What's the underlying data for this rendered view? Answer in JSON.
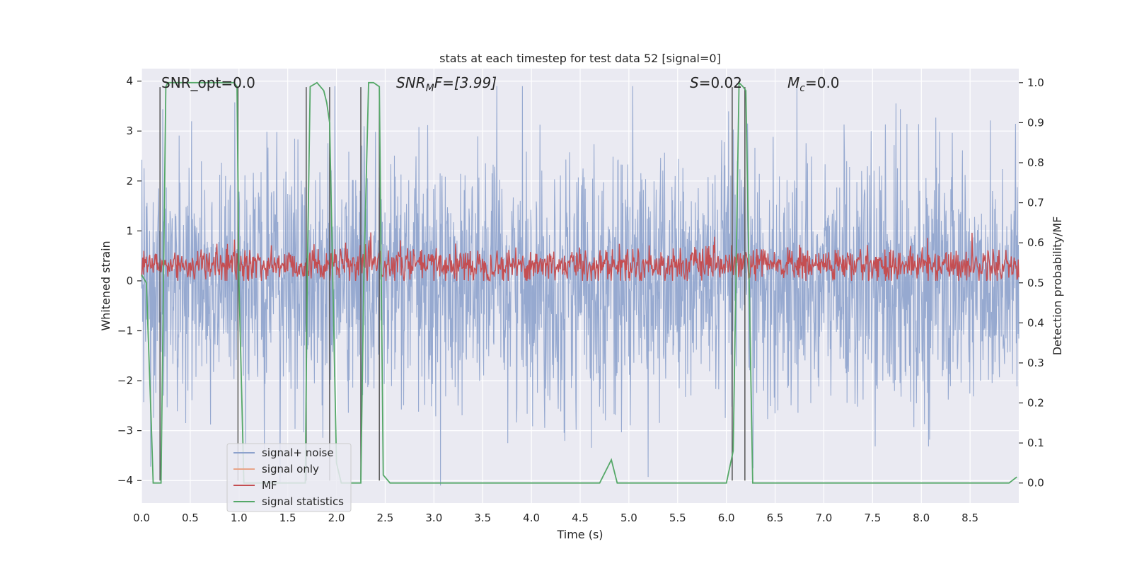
{
  "chart_data": {
    "type": "line",
    "title": "stats at each timestep for test data 52 [signal=0]",
    "xlabel": "Time (s)",
    "ylabel_left": "Whitened strain",
    "ylabel_right": "Detection probability/MF",
    "xlim": [
      0.0,
      9.0
    ],
    "ylim_left": [
      -4.45,
      4.25
    ],
    "ylim_right": [
      -0.05,
      1.035
    ],
    "x_ticks": [
      "0.0",
      "0.5",
      "1.0",
      "1.5",
      "2.0",
      "2.5",
      "3.0",
      "3.5",
      "4.0",
      "4.5",
      "5.0",
      "5.5",
      "6.0",
      "6.5",
      "7.0",
      "7.5",
      "8.0",
      "8.5"
    ],
    "x_tick_values": [
      0.0,
      0.5,
      1.0,
      1.5,
      2.0,
      2.5,
      3.0,
      3.5,
      4.0,
      4.5,
      5.0,
      5.5,
      6.0,
      6.5,
      7.0,
      7.5,
      8.0,
      8.5
    ],
    "y_left_ticks": [
      "4",
      "3",
      "2",
      "1",
      "0",
      "−1",
      "−2",
      "−3",
      "−4"
    ],
    "y_left_tick_values": [
      4,
      3,
      2,
      1,
      0,
      -1,
      -2,
      -3,
      -4
    ],
    "y_right_ticks": [
      "1.0",
      "0.9",
      "0.8",
      "0.7",
      "0.6",
      "0.5",
      "0.4",
      "0.3",
      "0.2",
      "0.1",
      "0.0"
    ],
    "y_right_tick_values": [
      1.0,
      0.9,
      0.8,
      0.7,
      0.6,
      0.5,
      0.4,
      0.3,
      0.2,
      0.1,
      0.0
    ],
    "grid": true,
    "legend_position": "lower-left",
    "annotations": {
      "snr_opt": "SNR_opt=0.0",
      "snr_mf_prefix": "SNR",
      "snr_mf_sub": "M",
      "snr_mf_suffix": "F=[3.99]",
      "s_var": "S",
      "s_val": "=0.02",
      "mc_var": "M",
      "mc_sub": "c",
      "mc_val": "=0.0"
    },
    "series": [
      {
        "name": "signal+ noise",
        "color": "#8da2cc",
        "axis": "left",
        "envelope_max": 3.9,
        "envelope_min": -4.1,
        "note_values": "dense noise trace, bulk roughly within ±1.6"
      },
      {
        "name": "signal only",
        "color": "#e8a488",
        "axis": "left",
        "values": []
      },
      {
        "name": "MF",
        "color": "#c44e52",
        "axis": "left",
        "range": [
          0.0,
          1.0
        ]
      },
      {
        "name": "signal statistics",
        "color": "#55a868",
        "axis": "right",
        "x": [
          0.0,
          0.05,
          0.1,
          0.12,
          0.17,
          0.2,
          0.25,
          0.27,
          0.95,
          0.98,
          1.0,
          1.05,
          1.08,
          1.68,
          1.7,
          1.73,
          1.8,
          1.87,
          1.9,
          1.93,
          2.0,
          2.05,
          2.25,
          2.28,
          2.33,
          2.38,
          2.44,
          2.48,
          2.55,
          4.7,
          4.82,
          4.88,
          4.95,
          6.0,
          6.07,
          6.13,
          6.17,
          6.2,
          6.27,
          8.9,
          8.98
        ],
        "y": [
          0.52,
          0.5,
          0.15,
          0.0,
          0.0,
          0.0,
          0.99,
          1.0,
          1.0,
          0.99,
          0.5,
          0.0,
          0.0,
          0.0,
          0.5,
          0.99,
          1.0,
          0.98,
          0.95,
          0.9,
          0.05,
          0.0,
          0.0,
          0.5,
          1.0,
          1.0,
          0.99,
          0.02,
          0.0,
          0.0,
          0.058,
          0.0,
          0.0,
          0.0,
          0.08,
          1.0,
          0.99,
          0.98,
          0.0,
          0.0,
          0.015
        ]
      }
    ],
    "vertical_lines_x": [
      0.19,
      0.99,
      1.69,
      1.93,
      2.25,
      2.44,
      6.06,
      6.19
    ]
  },
  "legend": {
    "items": [
      {
        "label": "signal+ noise",
        "color": "#8da2cc"
      },
      {
        "label": "signal only",
        "color": "#e8a488"
      },
      {
        "label": "MF",
        "color": "#c44e52"
      },
      {
        "label": "signal statistics",
        "color": "#55a868"
      }
    ]
  },
  "style": {
    "axes_background": "#eaeaf2",
    "grid_color": "#ffffff",
    "vline_color": "#555555"
  }
}
